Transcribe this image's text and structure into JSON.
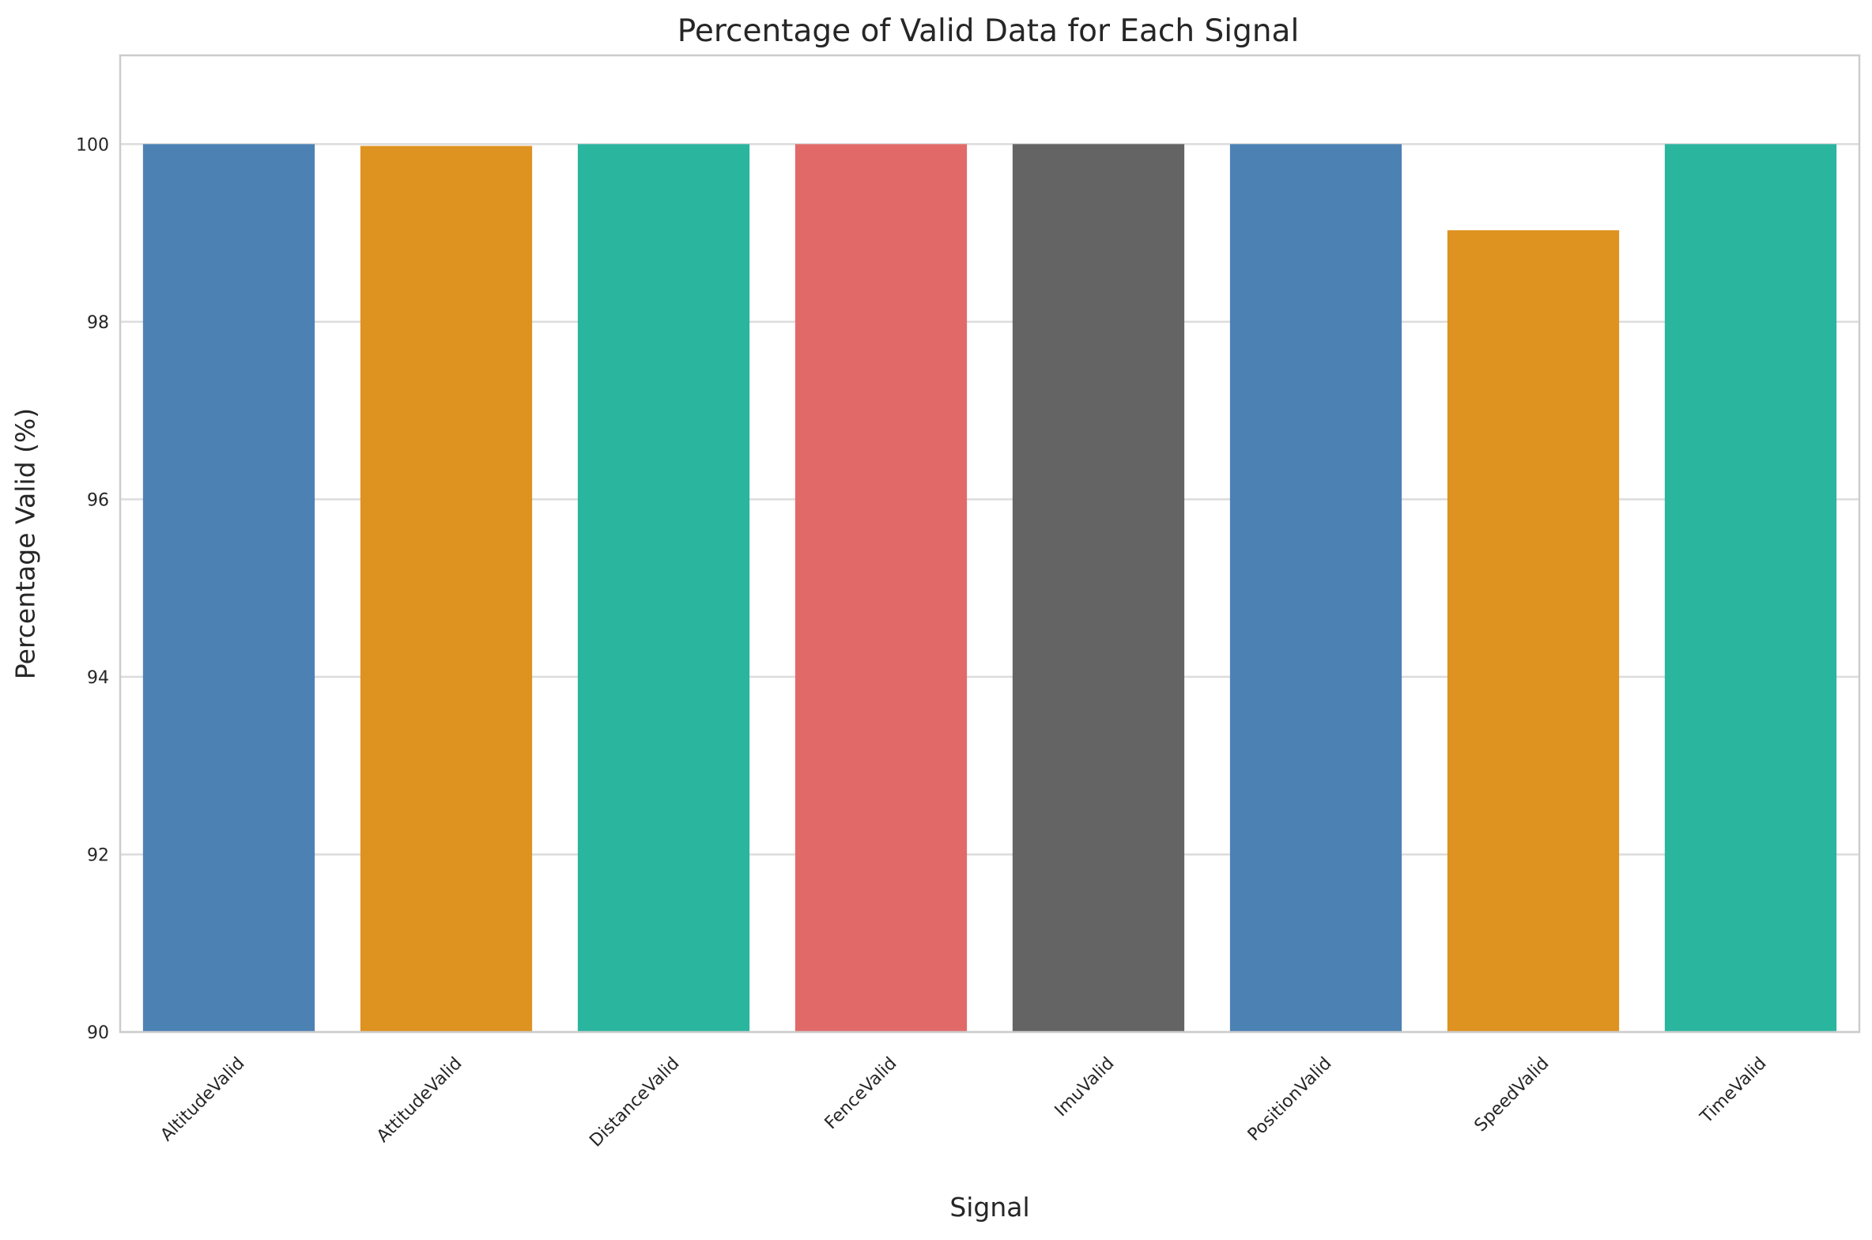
{
  "chart_data": {
    "type": "bar",
    "title": "Percentage of Valid Data for Each Signal",
    "xlabel": "Signal",
    "ylabel": "Percentage Valid (%)",
    "categories": [
      "AltitudeValid",
      "AttitudeValid",
      "DistanceValid",
      "FenceValid",
      "ImuValid",
      "PositionValid",
      "SpeedValid",
      "TimeValid"
    ],
    "values": [
      100.0,
      99.98,
      100.0,
      100.0,
      100.0,
      100.0,
      99.03,
      100.0
    ],
    "colors": [
      "#4c81b4",
      "#de9220",
      "#2ab59e",
      "#e16a69",
      "#646464",
      "#4c81b4",
      "#de9220",
      "#2ab59e"
    ],
    "ylim": [
      90,
      101
    ],
    "yticks": [
      90,
      92,
      94,
      96,
      98,
      100
    ],
    "grid": "horizontal",
    "tick_rotation": 45
  }
}
